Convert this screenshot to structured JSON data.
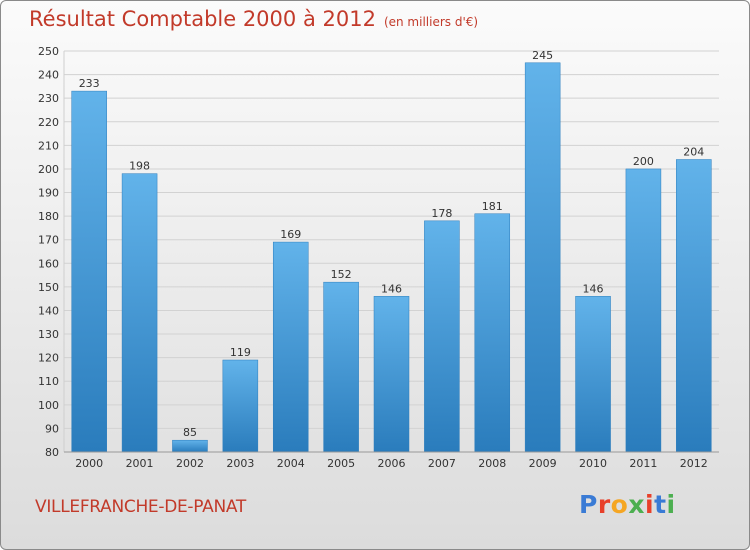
{
  "title": "Résultat Comptable 2000 à 2012",
  "subtitle": "(en milliers d'€)",
  "location": "VILLEFRANCHE-DE-PANAT",
  "logo": {
    "text": "Proxiti",
    "letter_colors": [
      "#3a7bd5",
      "#e8402a",
      "#f5a623",
      "#4caf50",
      "#e8402a",
      "#3a7bd5",
      "#4caf50"
    ]
  },
  "colors": {
    "bar_light": "#62b3ea",
    "bar_dark": "#2a7cbc",
    "text_red": "#c23a2a"
  },
  "chart_data": {
    "type": "bar",
    "categories": [
      "2000",
      "2001",
      "2002",
      "2003",
      "2004",
      "2005",
      "2006",
      "2007",
      "2008",
      "2009",
      "2010",
      "2011",
      "2012"
    ],
    "values": [
      233,
      198,
      85,
      119,
      169,
      152,
      146,
      178,
      181,
      245,
      146,
      200,
      204
    ],
    "ylim": [
      80,
      250
    ],
    "yticks": [
      80,
      90,
      100,
      110,
      120,
      130,
      140,
      150,
      160,
      170,
      180,
      190,
      200,
      210,
      220,
      230,
      240,
      250
    ],
    "grid": true
  }
}
